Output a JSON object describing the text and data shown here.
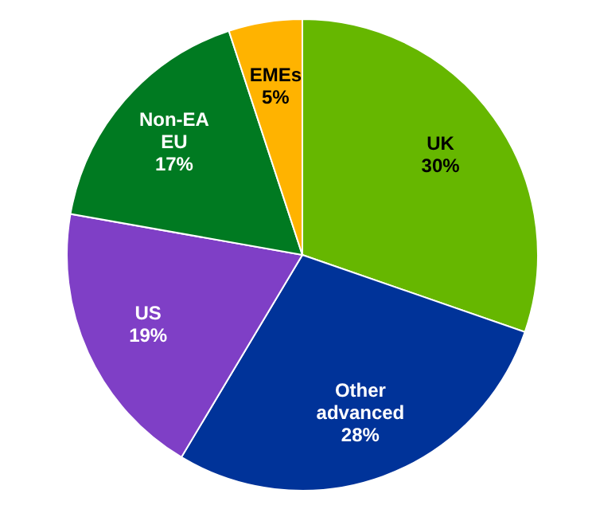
{
  "chart_data": {
    "type": "pie",
    "categories": [
      "UK",
      "Other advanced",
      "US",
      "Non-EA EU",
      "EMEs"
    ],
    "values": [
      30,
      28,
      19,
      17,
      5
    ],
    "value_labels": [
      "30%",
      "28%",
      "19%",
      "17%",
      "5%"
    ],
    "colors": [
      "#66b700",
      "#003399",
      "#7f3fc6",
      "#007a21",
      "#ffb300"
    ]
  }
}
